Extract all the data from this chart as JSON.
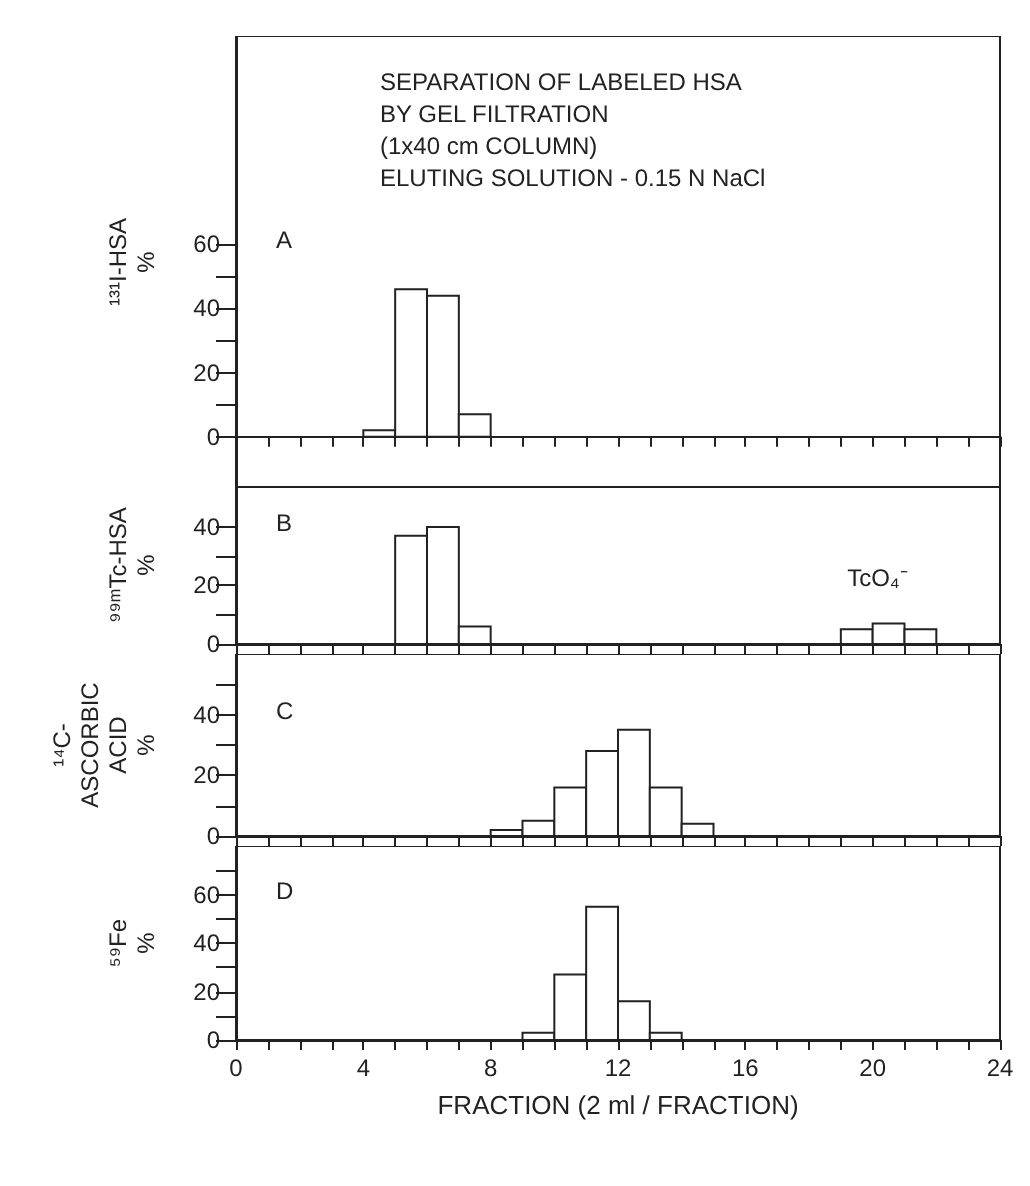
{
  "chart_data": [
    {
      "type": "histogram",
      "title": "SEPARATION OF LABELED HSA\nBY GEL FILTRATION\n(1x40 cm COLUMN)\nELUTING SOLUTION - 0.15 N NaCl",
      "ylabel": "¹³¹I-HSA\n%",
      "annotations": [
        "A"
      ],
      "bins": [
        4,
        5,
        6,
        7,
        8
      ],
      "values": [
        2,
        46,
        44,
        7
      ],
      "color": "#ffffff",
      "xlim": [
        0,
        24
      ],
      "ylim": [
        -16,
        125
      ],
      "xticks": [
        0,
        {
          "value": 1,
          "label": null
        },
        {
          "value": 2,
          "label": null
        },
        {
          "value": 3,
          "label": null
        },
        4,
        {
          "value": 5,
          "label": null
        },
        {
          "value": 6,
          "label": null
        },
        {
          "value": 7,
          "label": null
        },
        8,
        {
          "value": 9,
          "label": null
        },
        {
          "value": 10,
          "label": null
        },
        {
          "value": 11,
          "label": null
        },
        12,
        {
          "value": 13,
          "label": null
        },
        {
          "value": 14,
          "label": null
        },
        {
          "value": 15,
          "label": null
        },
        16,
        {
          "value": 17,
          "label": null
        },
        {
          "value": 18,
          "label": null
        },
        {
          "value": 19,
          "label": null
        },
        20,
        {
          "value": 21,
          "label": null
        },
        {
          "value": 22,
          "label": null
        },
        {
          "value": 23,
          "label": null
        },
        24
      ],
      "yticks": [
        0,
        {
          "value": 10,
          "label": null
        },
        20,
        {
          "value": 30,
          "label": null
        },
        40,
        {
          "value": 50,
          "label": null
        },
        60
      ],
      "tick_labels": "y"
    },
    {
      "type": "histogram",
      "ylabel": "⁹⁹ᵐTc-HSA\n%",
      "annotations": [
        "B",
        "TcO₄⁻"
      ],
      "bins": [
        5,
        6,
        7,
        8,
        9,
        10,
        11,
        12,
        13,
        14,
        15,
        16,
        17,
        18,
        19,
        20,
        21,
        22
      ],
      "values": [
        37,
        40,
        6,
        0,
        0,
        0,
        0,
        0,
        0,
        0,
        0,
        0,
        0,
        0,
        5,
        7,
        5
      ],
      "color": "#ffffff",
      "xlim": [
        0,
        24
      ],
      "ylim": [
        0,
        54
      ],
      "xticks": [
        0,
        {
          "value": 1,
          "label": null
        },
        {
          "value": 2,
          "label": null
        },
        {
          "value": 3,
          "label": null
        },
        4,
        {
          "value": 5,
          "label": null
        },
        {
          "value": 6,
          "label": null
        },
        {
          "value": 7,
          "label": null
        },
        8,
        {
          "value": 9,
          "label": null
        },
        {
          "value": 10,
          "label": null
        },
        {
          "value": 11,
          "label": null
        },
        12,
        {
          "value": 13,
          "label": null
        },
        {
          "value": 14,
          "label": null
        },
        {
          "value": 15,
          "label": null
        },
        16,
        {
          "value": 17,
          "label": null
        },
        {
          "value": 18,
          "label": null
        },
        {
          "value": 19,
          "label": null
        },
        20,
        {
          "value": 21,
          "label": null
        },
        {
          "value": 22,
          "label": null
        },
        {
          "value": 23,
          "label": null
        },
        24
      ],
      "yticks": [
        0,
        {
          "value": 10,
          "label": null
        },
        20,
        {
          "value": 30,
          "label": null
        },
        40
      ],
      "tick_labels": "y"
    },
    {
      "type": "histogram",
      "ylabel": "¹⁴C-\nASCORBIC\nACID\n%",
      "annotations": [
        "C"
      ],
      "bins": [
        8,
        9,
        10,
        11,
        12,
        13,
        14,
        15
      ],
      "values": [
        2,
        5,
        16,
        28,
        35,
        16,
        4
      ],
      "color": "#ffffff",
      "xlim": [
        0,
        24
      ],
      "ylim": [
        0,
        60
      ],
      "xticks": [
        0,
        {
          "value": 1,
          "label": null
        },
        {
          "value": 2,
          "label": null
        },
        {
          "value": 3,
          "label": null
        },
        4,
        {
          "value": 5,
          "label": null
        },
        {
          "value": 6,
          "label": null
        },
        {
          "value": 7,
          "label": null
        },
        8,
        {
          "value": 9,
          "label": null
        },
        {
          "value": 10,
          "label": null
        },
        {
          "value": 11,
          "label": null
        },
        12,
        {
          "value": 13,
          "label": null
        },
        {
          "value": 14,
          "label": null
        },
        {
          "value": 15,
          "label": null
        },
        16,
        {
          "value": 17,
          "label": null
        },
        {
          "value": 18,
          "label": null
        },
        {
          "value": 19,
          "label": null
        },
        20,
        {
          "value": 21,
          "label": null
        },
        {
          "value": 22,
          "label": null
        },
        {
          "value": 23,
          "label": null
        },
        24
      ],
      "yticks": [
        0,
        {
          "value": 10,
          "label": null
        },
        20,
        {
          "value": 30,
          "label": null
        },
        40,
        {
          "value": 50,
          "label": null
        }
      ],
      "tick_labels": "y"
    },
    {
      "type": "histogram",
      "ylabel": "⁵⁹Fe\n%",
      "xlabel": "FRACTION (2 ml / FRACTION)",
      "annotations": [
        "D"
      ],
      "bins": [
        9,
        10,
        11,
        12,
        13,
        14
      ],
      "values": [
        3,
        27,
        55,
        16,
        3
      ],
      "color": "#ffffff",
      "xlim": [
        0,
        24
      ],
      "ylim": [
        0,
        80
      ],
      "xticks": [
        0,
        {
          "value": 1,
          "label": null
        },
        {
          "value": 2,
          "label": null
        },
        {
          "value": 3,
          "label": null
        },
        4,
        {
          "value": 5,
          "label": null
        },
        {
          "value": 6,
          "label": null
        },
        {
          "value": 7,
          "label": null
        },
        8,
        {
          "value": 9,
          "label": null
        },
        {
          "value": 10,
          "label": null
        },
        {
          "value": 11,
          "label": null
        },
        12,
        {
          "value": 13,
          "label": null
        },
        {
          "value": 14,
          "label": null
        },
        {
          "value": 15,
          "label": null
        },
        16,
        {
          "value": 17,
          "label": null
        },
        {
          "value": 18,
          "label": null
        },
        {
          "value": 19,
          "label": null
        },
        20,
        {
          "value": 21,
          "label": null
        },
        {
          "value": 22,
          "label": null
        },
        {
          "value": 23,
          "label": null
        },
        24
      ],
      "yticks": [
        0,
        {
          "value": 10,
          "label": null
        },
        20,
        {
          "value": 30,
          "label": null
        },
        40,
        {
          "value": 50,
          "label": null
        },
        60,
        {
          "value": 70,
          "label": null
        }
      ]
    }
  ]
}
